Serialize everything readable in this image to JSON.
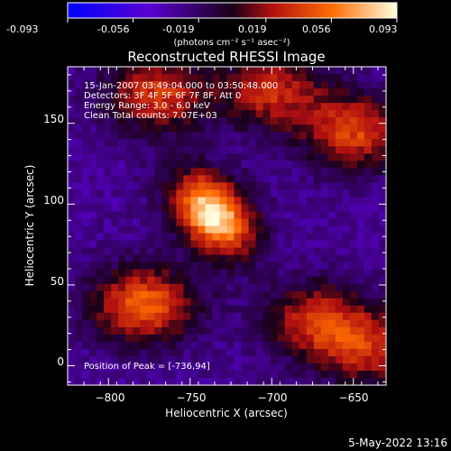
{
  "colorbar": {
    "ticks": [
      "-0.093",
      "-0.056",
      "-0.019",
      "0.019",
      "0.056",
      "0.093"
    ],
    "units": "(photons cm⁻² s⁻¹ asec⁻²)",
    "range": [
      -0.093,
      0.093
    ]
  },
  "chart_data": {
    "type": "heatmap",
    "title": "Reconstructed RHESSI Image",
    "xlabel": "Heliocentric X (arcsec)",
    "ylabel": "Heliocentric Y (arcsec)",
    "xlim": [
      -825,
      -630
    ],
    "ylim": [
      -12,
      185
    ],
    "xticks": [
      "−800",
      "−750",
      "−700",
      "−650"
    ],
    "xtick_values": [
      -800,
      -750,
      -700,
      -650
    ],
    "yticks": [
      "0",
      "50",
      "100",
      "150"
    ],
    "ytick_values": [
      0,
      50,
      100,
      150
    ],
    "annotations": [
      "15-Jan-2007 03:49:04.000 to 03:50:48.000",
      "Detectors: 3F 4F 5F 6F 7F 8F, Att 0",
      "Energy Range: 3.0 - 6.0 keV",
      "Clean     Total counts: 7.07E+03"
    ],
    "peak_label": "Position of Peak = [-736,94]",
    "peak": [
      -736,
      94
    ],
    "sources": [
      {
        "x": -736,
        "y": 94,
        "amp": 0.093
      },
      {
        "x": -778,
        "y": 38,
        "amp": 0.052
      },
      {
        "x": -650,
        "y": 145,
        "amp": 0.04
      },
      {
        "x": -672,
        "y": 28,
        "amp": 0.032
      },
      {
        "x": -770,
        "y": 168,
        "amp": 0.035
      },
      {
        "x": -700,
        "y": 170,
        "amp": 0.03
      },
      {
        "x": -640,
        "y": 10,
        "amp": 0.025
      }
    ]
  },
  "footer": {
    "date": "5-May-2022 13:16"
  }
}
